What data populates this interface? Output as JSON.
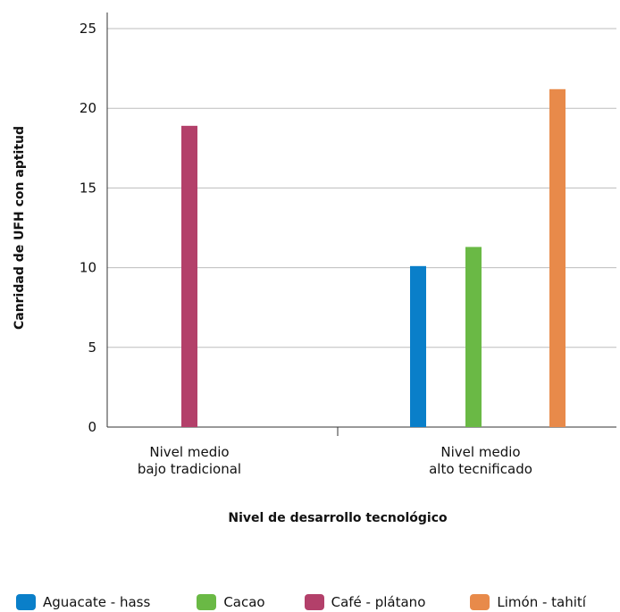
{
  "chart_data": {
    "type": "bar",
    "categories": [
      [
        "Nivel medio",
        "bajo tradicional"
      ],
      [
        "Nivel medio",
        "alto tecnificado"
      ]
    ],
    "xlabel": "Nivel de desarrollo tecnológico",
    "ylabel": "Canridad de UFH con aptitud",
    "ylim": [
      0,
      25
    ],
    "yticks": [
      0,
      5,
      10,
      15,
      20,
      25
    ],
    "grid": true,
    "legend_position": "bottom",
    "series": [
      {
        "name": "Aguacate - hass",
        "color": "#0a7fc9",
        "values": [
          null,
          10.1
        ]
      },
      {
        "name": "Cacao",
        "color": "#6ab945",
        "values": [
          null,
          11.3
        ]
      },
      {
        "name": "Café - plátano",
        "color": "#b3406a",
        "values": [
          18.9,
          null
        ]
      },
      {
        "name": "Limón - tahití",
        "color": "#e88a4a",
        "values": [
          null,
          21.2
        ]
      }
    ]
  }
}
